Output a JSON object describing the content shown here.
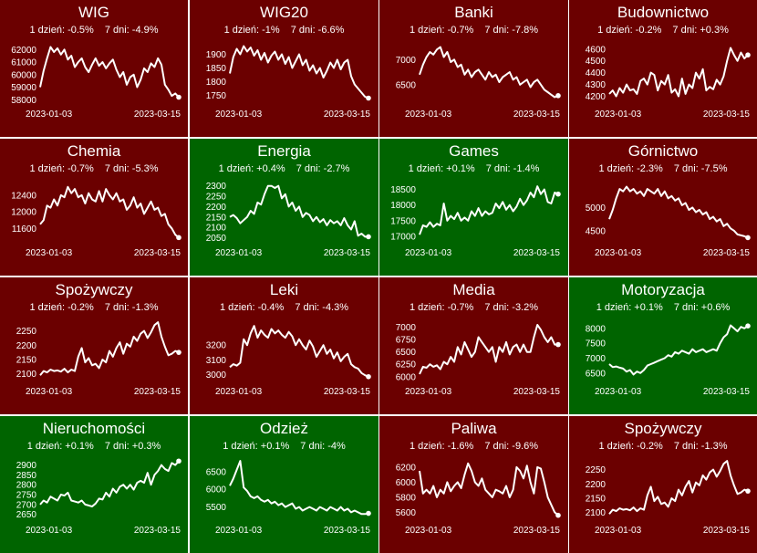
{
  "colors": {
    "up": "#006400",
    "down": "#6b0000",
    "line": "#ffffff",
    "border": "#b0b0b0"
  },
  "chart_data": [
    {
      "type": "line",
      "title": "WIG",
      "stat_1d": "1 dzień: -0.5%",
      "stat_7d": "7 dni: -4.9%",
      "trend": "down",
      "x_start": "2023-01-03",
      "x_end": "2023-03-15",
      "yticks": [
        58000,
        59000,
        60000,
        61000,
        62000
      ],
      "ylim": [
        57800,
        62600
      ],
      "values": [
        59000,
        60300,
        61300,
        62200,
        61800,
        62100,
        61600,
        62000,
        61200,
        61500,
        60600,
        61000,
        61300,
        60600,
        60200,
        60800,
        61300,
        60700,
        61000,
        60500,
        60900,
        61200,
        60400,
        59800,
        60200,
        59200,
        59800,
        60000,
        59000,
        59600,
        60500,
        60200,
        60900,
        60600,
        61300,
        60800,
        59200,
        58800,
        58300,
        58500,
        58200
      ]
    },
    {
      "type": "line",
      "title": "WIG20",
      "stat_1d": "1 dzień: -1%",
      "stat_7d": "7 dni: -6.6%",
      "trend": "down",
      "x_start": "2023-01-03",
      "x_end": "2023-03-15",
      "yticks": [
        1750,
        1800,
        1850,
        1900
      ],
      "ylim": [
        1725,
        1945
      ],
      "values": [
        1830,
        1890,
        1920,
        1900,
        1930,
        1910,
        1925,
        1895,
        1915,
        1880,
        1905,
        1870,
        1895,
        1910,
        1880,
        1900,
        1865,
        1890,
        1850,
        1875,
        1900,
        1860,
        1880,
        1840,
        1860,
        1830,
        1850,
        1815,
        1840,
        1870,
        1850,
        1880,
        1845,
        1870,
        1880,
        1820,
        1790,
        1775,
        1760,
        1745,
        1740
      ]
    },
    {
      "type": "line",
      "title": "Banki",
      "stat_1d": "1 dzień: -0.7%",
      "stat_7d": "7 dni: -7.8%",
      "trend": "down",
      "x_start": "2023-01-03",
      "x_end": "2023-03-15",
      "yticks": [
        6500,
        7000
      ],
      "ylim": [
        6150,
        7350
      ],
      "values": [
        6700,
        6900,
        7050,
        7150,
        7100,
        7200,
        7250,
        7050,
        7150,
        6950,
        7000,
        6850,
        6900,
        6700,
        6800,
        6650,
        6750,
        6800,
        6700,
        6600,
        6750,
        6650,
        6700,
        6550,
        6650,
        6700,
        6750,
        6600,
        6650,
        6500,
        6550,
        6600,
        6450,
        6550,
        6600,
        6500,
        6400,
        6350,
        6300,
        6250,
        6280
      ]
    },
    {
      "type": "line",
      "title": "Budownictwo",
      "stat_1d": "1 dzień: -0.2%",
      "stat_7d": "7 dni: +0.3%",
      "trend": "down",
      "x_start": "2023-01-03",
      "x_end": "2023-03-15",
      "yticks": [
        4200,
        4300,
        4400,
        4500,
        4600
      ],
      "ylim": [
        4150,
        4660
      ],
      "values": [
        4220,
        4250,
        4200,
        4270,
        4230,
        4300,
        4250,
        4260,
        4220,
        4330,
        4350,
        4300,
        4400,
        4380,
        4250,
        4330,
        4300,
        4380,
        4230,
        4260,
        4200,
        4350,
        4220,
        4300,
        4270,
        4400,
        4350,
        4430,
        4250,
        4280,
        4260,
        4340,
        4300,
        4370,
        4500,
        4610,
        4550,
        4500,
        4570,
        4520,
        4550
      ]
    },
    {
      "type": "line",
      "title": "Chemia",
      "stat_1d": "1 dzień: -0.7%",
      "stat_7d": "7 dni: -5.3%",
      "trend": "down",
      "x_start": "2023-01-03",
      "x_end": "2023-03-15",
      "yticks": [
        11600,
        12000,
        12400
      ],
      "ylim": [
        11300,
        12750
      ],
      "values": [
        11700,
        11800,
        12150,
        12100,
        12300,
        12150,
        12400,
        12350,
        12600,
        12450,
        12550,
        12350,
        12400,
        12200,
        12450,
        12300,
        12250,
        12500,
        12250,
        12550,
        12400,
        12300,
        12450,
        12250,
        12300,
        12050,
        12150,
        12350,
        12100,
        12200,
        11950,
        12100,
        12250,
        12050,
        12100,
        11900,
        11950,
        11700,
        11600,
        11450,
        11380
      ]
    },
    {
      "type": "line",
      "title": "Energia",
      "stat_1d": "1 dzień: +0.4%",
      "stat_7d": "7 dni: -2.7%",
      "trend": "up",
      "x_start": "2023-01-03",
      "x_end": "2023-03-15",
      "yticks": [
        2050,
        2100,
        2150,
        2200,
        2250,
        2300
      ],
      "ylim": [
        2035,
        2325
      ],
      "values": [
        2150,
        2160,
        2145,
        2120,
        2135,
        2150,
        2180,
        2165,
        2220,
        2210,
        2260,
        2300,
        2300,
        2290,
        2300,
        2240,
        2260,
        2200,
        2220,
        2180,
        2200,
        2150,
        2170,
        2160,
        2130,
        2150,
        2125,
        2140,
        2110,
        2135,
        2120,
        2130,
        2110,
        2145,
        2110,
        2090,
        2130,
        2060,
        2070,
        2055,
        2055
      ]
    },
    {
      "type": "line",
      "title": "Games",
      "stat_1d": "1 dzień: +0.1%",
      "stat_7d": "7 dni: -1.4%",
      "trend": "up",
      "x_start": "2023-01-03",
      "x_end": "2023-03-15",
      "yticks": [
        17000,
        17500,
        18000,
        18500
      ],
      "ylim": [
        16850,
        18780
      ],
      "values": [
        17050,
        17350,
        17300,
        17450,
        17300,
        17400,
        17350,
        18050,
        17500,
        17650,
        17550,
        17750,
        17500,
        17600,
        17500,
        17800,
        17650,
        17900,
        17650,
        17800,
        17700,
        17750,
        18050,
        17900,
        18100,
        17850,
        18000,
        17800,
        17950,
        18200,
        18000,
        18150,
        18400,
        18250,
        18600,
        18350,
        18500,
        18100,
        18050,
        18400,
        18350
      ]
    },
    {
      "type": "line",
      "title": "Górnictwo",
      "stat_1d": "1 dzień: -2.3%",
      "stat_7d": "7 dni: -7.5%",
      "trend": "down",
      "x_start": "2023-01-03",
      "x_end": "2023-03-15",
      "yticks": [
        4500,
        5000
      ],
      "ylim": [
        4280,
        5580
      ],
      "values": [
        4750,
        4950,
        5200,
        5400,
        5350,
        5450,
        5350,
        5400,
        5300,
        5350,
        5250,
        5400,
        5350,
        5300,
        5400,
        5250,
        5350,
        5200,
        5250,
        5150,
        5200,
        5050,
        5100,
        4950,
        5000,
        4900,
        4950,
        4850,
        4900,
        4750,
        4800,
        4700,
        4750,
        4600,
        4650,
        4550,
        4500,
        4420,
        4400,
        4380,
        4350
      ]
    },
    {
      "type": "line",
      "title": "Spożywczy",
      "stat_1d": "1 dzień: -0.2%",
      "stat_7d": "7 dni: -1.3%",
      "trend": "down",
      "x_start": "2023-01-03",
      "x_end": "2023-03-15",
      "yticks": [
        2100,
        2150,
        2200,
        2250
      ],
      "ylim": [
        2080,
        2290
      ],
      "values": [
        2095,
        2110,
        2105,
        2115,
        2110,
        2112,
        2108,
        2118,
        2105,
        2115,
        2110,
        2160,
        2190,
        2140,
        2155,
        2130,
        2135,
        2120,
        2150,
        2140,
        2180,
        2160,
        2190,
        2210,
        2170,
        2205,
        2195,
        2230,
        2215,
        2240,
        2250,
        2225,
        2245,
        2270,
        2280,
        2230,
        2195,
        2165,
        2170,
        2180,
        2175
      ]
    },
    {
      "type": "line",
      "title": "Leki",
      "stat_1d": "1 dzień: -0.4%",
      "stat_7d": "7 dni: -4.3%",
      "trend": "down",
      "x_start": "2023-01-03",
      "x_end": "2023-03-15",
      "yticks": [
        3000,
        3100,
        3200
      ],
      "ylim": [
        2965,
        3375
      ],
      "values": [
        3050,
        3070,
        3060,
        3080,
        3240,
        3200,
        3280,
        3330,
        3250,
        3300,
        3270,
        3250,
        3310,
        3280,
        3300,
        3270,
        3250,
        3290,
        3260,
        3200,
        3240,
        3200,
        3170,
        3230,
        3190,
        3120,
        3160,
        3200,
        3140,
        3170,
        3110,
        3150,
        3090,
        3120,
        3140,
        3070,
        3050,
        3040,
        3010,
        2995,
        2985
      ]
    },
    {
      "type": "line",
      "title": "Media",
      "stat_1d": "1 dzień: -0.7%",
      "stat_7d": "7 dni: -3.2%",
      "trend": "down",
      "x_start": "2023-01-03",
      "x_end": "2023-03-15",
      "yticks": [
        6000,
        6250,
        6500,
        6750,
        7000
      ],
      "ylim": [
        5940,
        7160
      ],
      "values": [
        6050,
        6200,
        6180,
        6250,
        6200,
        6230,
        6150,
        6300,
        6250,
        6400,
        6300,
        6600,
        6450,
        6700,
        6550,
        6400,
        6500,
        6800,
        6700,
        6600,
        6500,
        6600,
        6300,
        6600,
        6500,
        6700,
        6450,
        6600,
        6650,
        6500,
        6650,
        6500,
        6500,
        6800,
        7050,
        6950,
        6800,
        6700,
        6800,
        6650,
        6650
      ]
    },
    {
      "type": "line",
      "title": "Motoryzacja",
      "stat_1d": "1 dzień: +0.1%",
      "stat_7d": "7 dni: +0.6%",
      "trend": "up",
      "x_start": "2023-01-03",
      "x_end": "2023-03-15",
      "yticks": [
        6500,
        7000,
        7500,
        8000
      ],
      "ylim": [
        6280,
        8300
      ],
      "values": [
        6800,
        6700,
        6720,
        6680,
        6650,
        6550,
        6600,
        6450,
        6550,
        6500,
        6600,
        6750,
        6800,
        6850,
        6900,
        6950,
        7000,
        7100,
        7050,
        7200,
        7150,
        7250,
        7200,
        7150,
        7300,
        7200,
        7250,
        7300,
        7200,
        7250,
        7300,
        7250,
        7500,
        7700,
        7800,
        8100,
        8000,
        7900,
        8050,
        8000,
        8080
      ]
    },
    {
      "type": "line",
      "title": "Nieruchomości",
      "stat_1d": "1 dzień: +0.1%",
      "stat_7d": "7 dni: +0.3%",
      "trend": "up",
      "x_start": "2023-01-03",
      "x_end": "2023-03-15",
      "yticks": [
        2650,
        2700,
        2750,
        2800,
        2850,
        2900
      ],
      "ylim": [
        2630,
        2935
      ],
      "values": [
        2700,
        2720,
        2710,
        2740,
        2730,
        2720,
        2750,
        2745,
        2760,
        2720,
        2715,
        2710,
        2720,
        2700,
        2695,
        2690,
        2705,
        2730,
        2725,
        2760,
        2740,
        2780,
        2760,
        2790,
        2800,
        2780,
        2800,
        2775,
        2810,
        2820,
        2810,
        2860,
        2800,
        2850,
        2870,
        2900,
        2880,
        2870,
        2910,
        2900,
        2920
      ]
    },
    {
      "type": "line",
      "title": "Odzież",
      "stat_1d": "1 dzień: +0.1%",
      "stat_7d": "7 dni: -4%",
      "trend": "up",
      "x_start": "2023-01-03",
      "x_end": "2023-03-15",
      "yticks": [
        5500,
        6000,
        6500
      ],
      "ylim": [
        5180,
        6880
      ],
      "values": [
        6100,
        6300,
        6550,
        6800,
        6050,
        5950,
        5800,
        5750,
        5800,
        5700,
        5650,
        5700,
        5600,
        5650,
        5550,
        5600,
        5500,
        5550,
        5600,
        5450,
        5500,
        5400,
        5450,
        5500,
        5450,
        5400,
        5500,
        5450,
        5400,
        5500,
        5450,
        5400,
        5500,
        5400,
        5450,
        5350,
        5400,
        5350,
        5300,
        5300,
        5320
      ]
    },
    {
      "type": "line",
      "title": "Paliwa",
      "stat_1d": "1 dzień: -1.6%",
      "stat_7d": "7 dni: -9.6%",
      "trend": "down",
      "x_start": "2023-01-03",
      "x_end": "2023-03-15",
      "yticks": [
        5600,
        5800,
        6000,
        6200
      ],
      "ylim": [
        5520,
        6320
      ],
      "values": [
        6150,
        5850,
        5900,
        5850,
        5950,
        5800,
        5900,
        5850,
        6000,
        5880,
        5950,
        6000,
        5920,
        6100,
        6250,
        6150,
        6000,
        5950,
        6050,
        5900,
        5850,
        5800,
        5900,
        5880,
        5850,
        5950,
        5800,
        5900,
        6200,
        6150,
        6050,
        6220,
        6000,
        5850,
        6200,
        6180,
        6000,
        5800,
        5700,
        5600,
        5560
      ]
    },
    {
      "type": "line",
      "title": "Spożywczy",
      "stat_1d": "1 dzień: -0.2%",
      "stat_7d": "7 dni: -1.3%",
      "trend": "down",
      "x_start": "2023-01-03",
      "x_end": "2023-03-15",
      "yticks": [
        2100,
        2150,
        2200,
        2250
      ],
      "ylim": [
        2080,
        2290
      ],
      "values": [
        2095,
        2110,
        2105,
        2115,
        2110,
        2112,
        2108,
        2118,
        2105,
        2115,
        2110,
        2160,
        2190,
        2140,
        2155,
        2130,
        2135,
        2120,
        2150,
        2140,
        2180,
        2160,
        2190,
        2210,
        2170,
        2205,
        2195,
        2230,
        2215,
        2240,
        2250,
        2225,
        2245,
        2270,
        2280,
        2230,
        2195,
        2165,
        2170,
        2180,
        2175
      ]
    }
  ]
}
